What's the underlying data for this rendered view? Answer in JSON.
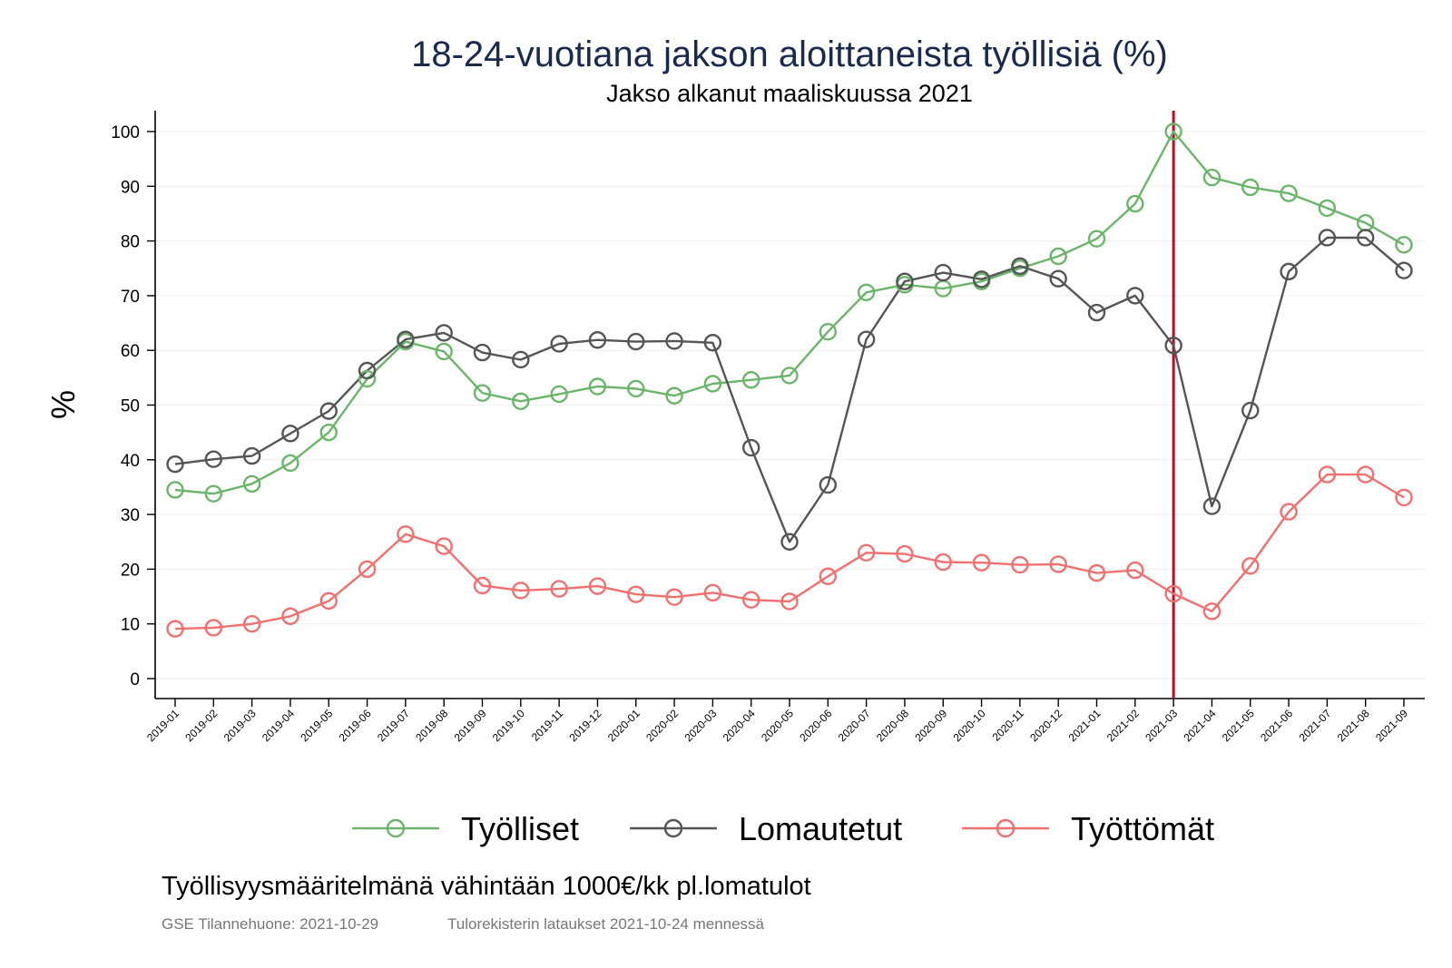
{
  "chart_data": {
    "type": "line",
    "title": "18-24-vuotiana jakson aloittaneista työllisiä (%)",
    "subtitle": "Jakso alkanut maaliskuussa 2021",
    "ylabel": "%",
    "xlabel": "",
    "ylim": [
      0,
      100
    ],
    "yticks": [
      0,
      10,
      20,
      30,
      40,
      50,
      60,
      70,
      80,
      90,
      100
    ],
    "grid": true,
    "legend_position": "bottom",
    "reference_line": {
      "x": "2021-03",
      "color": "#b0102a"
    },
    "categories": [
      "2019-01",
      "2019-02",
      "2019-03",
      "2019-04",
      "2019-05",
      "2019-06",
      "2019-07",
      "2019-08",
      "2019-09",
      "2019-10",
      "2019-11",
      "2019-12",
      "2020-01",
      "2020-02",
      "2020-03",
      "2020-04",
      "2020-05",
      "2020-06",
      "2020-07",
      "2020-08",
      "2020-09",
      "2020-10",
      "2020-11",
      "2020-12",
      "2021-01",
      "2021-02",
      "2021-03",
      "2021-04",
      "2021-05",
      "2021-06",
      "2021-07",
      "2021-08",
      "2021-09"
    ],
    "series": [
      {
        "name": "Työlliset",
        "color": "#6ab56a",
        "values": [
          34.5,
          33.8,
          35.6,
          39.4,
          45.0,
          54.8,
          61.6,
          59.8,
          52.2,
          50.7,
          52.0,
          53.4,
          53.0,
          51.7,
          53.9,
          54.6,
          55.4,
          63.4,
          70.6,
          72.0,
          71.3,
          72.6,
          75.0,
          77.2,
          80.4,
          86.8,
          100.0,
          91.6,
          89.8,
          88.7,
          86.0,
          83.3,
          79.3
        ]
      },
      {
        "name": "Lomautetut",
        "color": "#555555",
        "values": [
          39.2,
          40.1,
          40.7,
          44.8,
          48.9,
          56.3,
          62.0,
          63.2,
          59.6,
          58.3,
          61.2,
          61.9,
          61.6,
          61.7,
          61.4,
          42.2,
          25.0,
          35.4,
          62.0,
          72.6,
          74.2,
          73.0,
          75.4,
          73.1,
          66.9,
          70.0,
          60.9,
          31.5,
          49.0,
          74.4,
          80.6,
          80.6,
          74.6
        ]
      },
      {
        "name": "Työttömät",
        "color": "#f07070",
        "values": [
          9.1,
          9.3,
          10.0,
          11.4,
          14.2,
          20.0,
          26.4,
          24.2,
          17.0,
          16.1,
          16.4,
          16.9,
          15.4,
          14.9,
          15.7,
          14.4,
          14.1,
          18.7,
          23.0,
          22.8,
          21.3,
          21.2,
          20.8,
          20.9,
          19.3,
          19.8,
          15.5,
          12.3,
          20.6,
          30.5,
          37.3,
          37.3,
          33.1
        ]
      }
    ]
  },
  "footer": {
    "note": "Työllisyysmääritelmänä vähintään 1000€/kk pl.lomatulot",
    "source": "GSE Tilannehuone: 2021-10-29",
    "loads": "Tulorekisterin lataukset 2021-10-24 mennessä"
  }
}
